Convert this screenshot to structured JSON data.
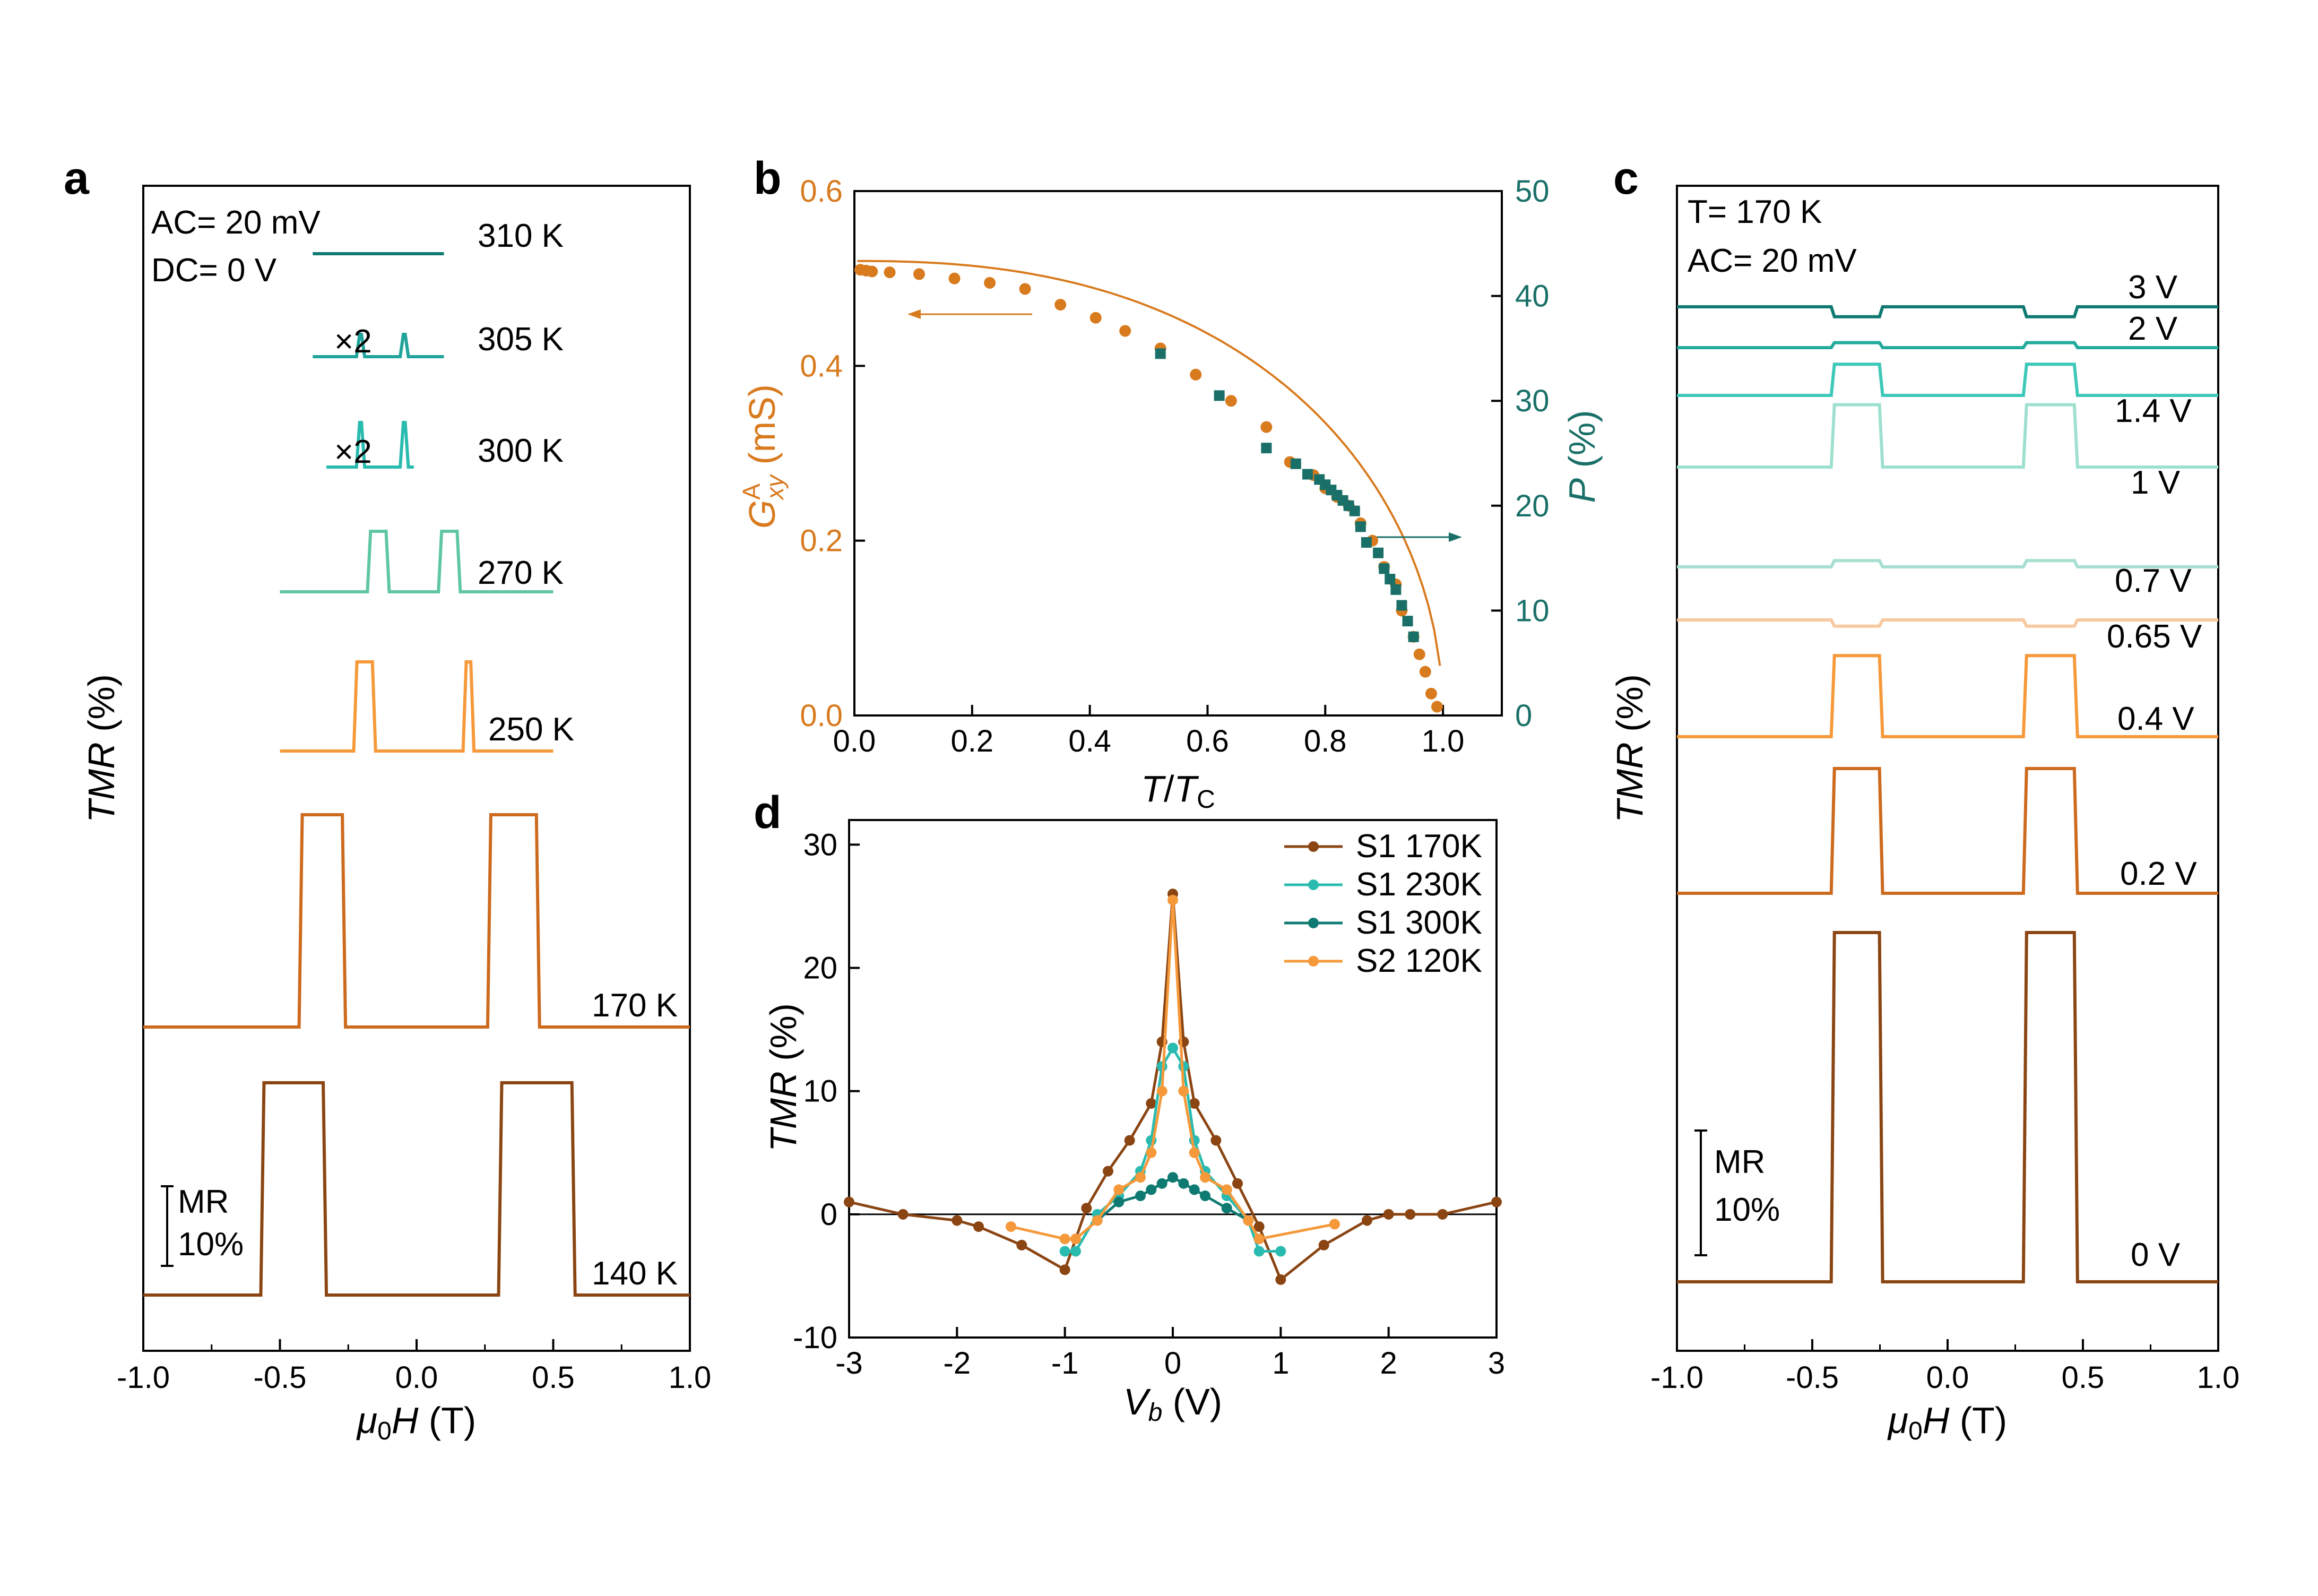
{
  "colors": {
    "c140": "#8B4513",
    "c170": "#CC6A1E",
    "c250": "#F5993A",
    "c270": "#5FC6A4",
    "c300": "#2ABBB0",
    "c305": "#1FA39A",
    "c310": "#0F7A72",
    "c065": "#F8C8A0",
    "c07": "#A6DFD0",
    "c1": "#9EE0CF",
    "c14": "#3DC8B8",
    "c2": "#22AA9B",
    "c3": "#0F7A72",
    "orange": "#D87A1E",
    "teal": "#1A7068"
  },
  "chart_data": [
    {
      "id": "a",
      "type": "line",
      "panel_label": "a",
      "xlabel_italic": "μ",
      "xlabel_sub": "0",
      "xlabel_h": "H",
      "xlabel_unit": " (T)",
      "ylabel": "TMR",
      "ylabel_unit": " (%)",
      "xlim": [
        -1.0,
        1.0
      ],
      "xticks": [
        "-1.0",
        "-0.5",
        "0.0",
        "0.5",
        "1.0"
      ],
      "annotation_ac": "AC= 20 mV",
      "annotation_dc": "DC= 0 V",
      "scale_bar": [
        "MR",
        "10%"
      ],
      "series": [
        {
          "name": "310 K",
          "loop_range": [
            -0.1,
            0.1
          ],
          "mr_percent": 0,
          "multiplier": ""
        },
        {
          "name": "305 K",
          "loop_range": [
            -0.04,
            0.04
          ],
          "mr_percent": 3,
          "multiplier": "×2"
        },
        {
          "name": "300 K",
          "loop_range": [
            -0.05,
            0.05
          ],
          "mr_percent": 4,
          "multiplier": "×2"
        },
        {
          "name": "270 K",
          "loop_range": [
            -0.15,
            0.15
          ],
          "mr_percent": 6,
          "multiplier": ""
        },
        {
          "name": "250 K",
          "loop_range": [
            -0.2,
            0.2
          ],
          "mr_percent": 8,
          "multiplier": ""
        },
        {
          "name": "170 K",
          "loop_range": [
            -0.3,
            0.3
          ],
          "mr_percent": 20,
          "multiplier": ""
        },
        {
          "name": "140 K",
          "loop_range": [
            -0.45,
            0.45
          ],
          "mr_percent": 20,
          "multiplier": ""
        }
      ]
    },
    {
      "id": "b",
      "type": "scatter",
      "panel_label": "b",
      "xlabel_t": "T",
      "xlabel_sep": "/",
      "xlabel_tc": "T",
      "xlabel_c": "C",
      "ylabel_left_g": "G",
      "ylabel_left_sup": "A",
      "ylabel_left_sub": "xy",
      "ylabel_left_unit": " (mS)",
      "ylabel_right_p": "P",
      "ylabel_right_unit": " (%)",
      "xlim": [
        0,
        1.1
      ],
      "ylim_left": [
        0,
        0.6
      ],
      "ylim_right": [
        0,
        50
      ],
      "xticks": [
        "0.0",
        "0.2",
        "0.4",
        "0.6",
        "0.8",
        "1.0"
      ],
      "yticks_left": [
        "0.0",
        "0.2",
        "0.4",
        "0.6"
      ],
      "yticks_right": [
        "0",
        "10",
        "20",
        "30",
        "40",
        "50"
      ],
      "series": [
        {
          "name": "Gxy",
          "x": [
            0.01,
            0.02,
            0.03,
            0.06,
            0.11,
            0.17,
            0.23,
            0.29,
            0.35,
            0.41,
            0.46,
            0.52,
            0.58,
            0.64,
            0.7,
            0.74,
            0.78,
            0.8,
            0.82,
            0.84,
            0.86,
            0.88,
            0.9,
            0.92,
            0.93,
            0.95,
            0.96,
            0.97,
            0.98,
            0.99
          ],
          "y": [
            0.51,
            0.509,
            0.508,
            0.507,
            0.505,
            0.5,
            0.495,
            0.488,
            0.47,
            0.455,
            0.44,
            0.42,
            0.39,
            0.36,
            0.33,
            0.29,
            0.275,
            0.26,
            0.25,
            0.24,
            0.22,
            0.2,
            0.17,
            0.15,
            0.12,
            0.09,
            0.07,
            0.05,
            0.025,
            0.01
          ]
        },
        {
          "name": "P",
          "x": [
            0.52,
            0.62,
            0.7,
            0.75,
            0.77,
            0.79,
            0.8,
            0.81,
            0.82,
            0.83,
            0.84,
            0.85,
            0.86,
            0.87,
            0.89,
            0.9,
            0.91,
            0.92,
            0.93,
            0.94,
            0.95
          ],
          "y": [
            34.5,
            30.5,
            25.5,
            24,
            23,
            22.5,
            22,
            21.5,
            21,
            20.5,
            20,
            19.5,
            18,
            16.5,
            15.5,
            14,
            13,
            12,
            10.5,
            9,
            7.5
          ]
        }
      ]
    },
    {
      "id": "c",
      "type": "line",
      "panel_label": "c",
      "xlabel_italic": "μ",
      "xlabel_sub": "0",
      "xlabel_h": "H",
      "xlabel_unit": " (T)",
      "ylabel": "TMR",
      "ylabel_unit": " (%)",
      "xlim": [
        -1.0,
        1.0
      ],
      "xticks": [
        "-1.0",
        "-0.5",
        "0.0",
        "0.5",
        "1.0"
      ],
      "annotation_t": "T= 170 K",
      "annotation_ac": "AC= 20 mV",
      "scale_bar": [
        "MR",
        "10%"
      ],
      "series": [
        {
          "name": "3 V",
          "mr_percent": -0.8
        },
        {
          "name": "2 V",
          "mr_percent": 0.4
        },
        {
          "name": "1.4 V",
          "mr_percent": 2.5
        },
        {
          "name": "1 V",
          "mr_percent": 5
        },
        {
          "name": "0.7 V",
          "mr_percent": 0.5
        },
        {
          "name": "0.65 V",
          "mr_percent": -0.5
        },
        {
          "name": "0.4 V",
          "mr_percent": 6.5
        },
        {
          "name": "0.2 V",
          "mr_percent": 10
        },
        {
          "name": "0 V",
          "mr_percent": 28
        }
      ]
    },
    {
      "id": "d",
      "type": "line",
      "panel_label": "d",
      "xlabel_v": "V",
      "xlabel_sub": "b",
      "xlabel_unit": " (V)",
      "ylabel": "TMR",
      "ylabel_unit": " (%)",
      "xlim": [
        -3,
        3
      ],
      "ylim": [
        -10,
        32
      ],
      "xticks": [
        "-3",
        "-2",
        "-1",
        "0",
        "1",
        "2",
        "3"
      ],
      "yticks": [
        "-10",
        "0",
        "10",
        "20",
        "30"
      ],
      "series": [
        {
          "name": "S1 170K",
          "x": [
            -3,
            -2.5,
            -2,
            -1.8,
            -1.4,
            -1,
            -0.8,
            -0.6,
            -0.4,
            -0.2,
            -0.1,
            0,
            0.1,
            0.2,
            0.4,
            0.6,
            0.8,
            1,
            1.4,
            1.8,
            2,
            2.2,
            2.5,
            3
          ],
          "y": [
            1,
            0,
            -0.5,
            -1,
            -2.5,
            -4.5,
            0.5,
            3.5,
            6,
            9,
            14,
            26,
            14,
            9,
            6,
            2.5,
            -1,
            -5.3,
            -2.5,
            -0.5,
            0,
            0,
            0,
            1
          ]
        },
        {
          "name": "S1 230K",
          "x": [
            -1,
            -0.9,
            -0.7,
            -0.5,
            -0.3,
            -0.2,
            -0.1,
            0,
            0.1,
            0.2,
            0.3,
            0.5,
            0.7,
            0.8,
            1
          ],
          "y": [
            -3,
            -3,
            0,
            1.5,
            3.5,
            6,
            12,
            13.5,
            12,
            6,
            3.5,
            1.5,
            -0.5,
            -3,
            -3
          ]
        },
        {
          "name": "S1 300K",
          "x": [
            -0.7,
            -0.5,
            -0.3,
            -0.2,
            -0.1,
            0,
            0.1,
            0.2,
            0.3,
            0.5,
            0.7
          ],
          "y": [
            -0.5,
            1,
            1.5,
            2,
            2.5,
            3,
            2.5,
            2,
            1.5,
            0.5,
            -0.5
          ]
        },
        {
          "name": "S2 120K",
          "x": [
            -1.5,
            -1,
            -0.9,
            -0.7,
            -0.5,
            -0.3,
            -0.2,
            -0.1,
            0,
            0.1,
            0.2,
            0.3,
            0.5,
            0.7,
            0.8,
            1.5
          ],
          "y": [
            -1,
            -2,
            -2,
            -0.5,
            2,
            3,
            5,
            10,
            25.5,
            10,
            5,
            3,
            2,
            -0.5,
            -2,
            -0.8
          ]
        }
      ]
    }
  ]
}
